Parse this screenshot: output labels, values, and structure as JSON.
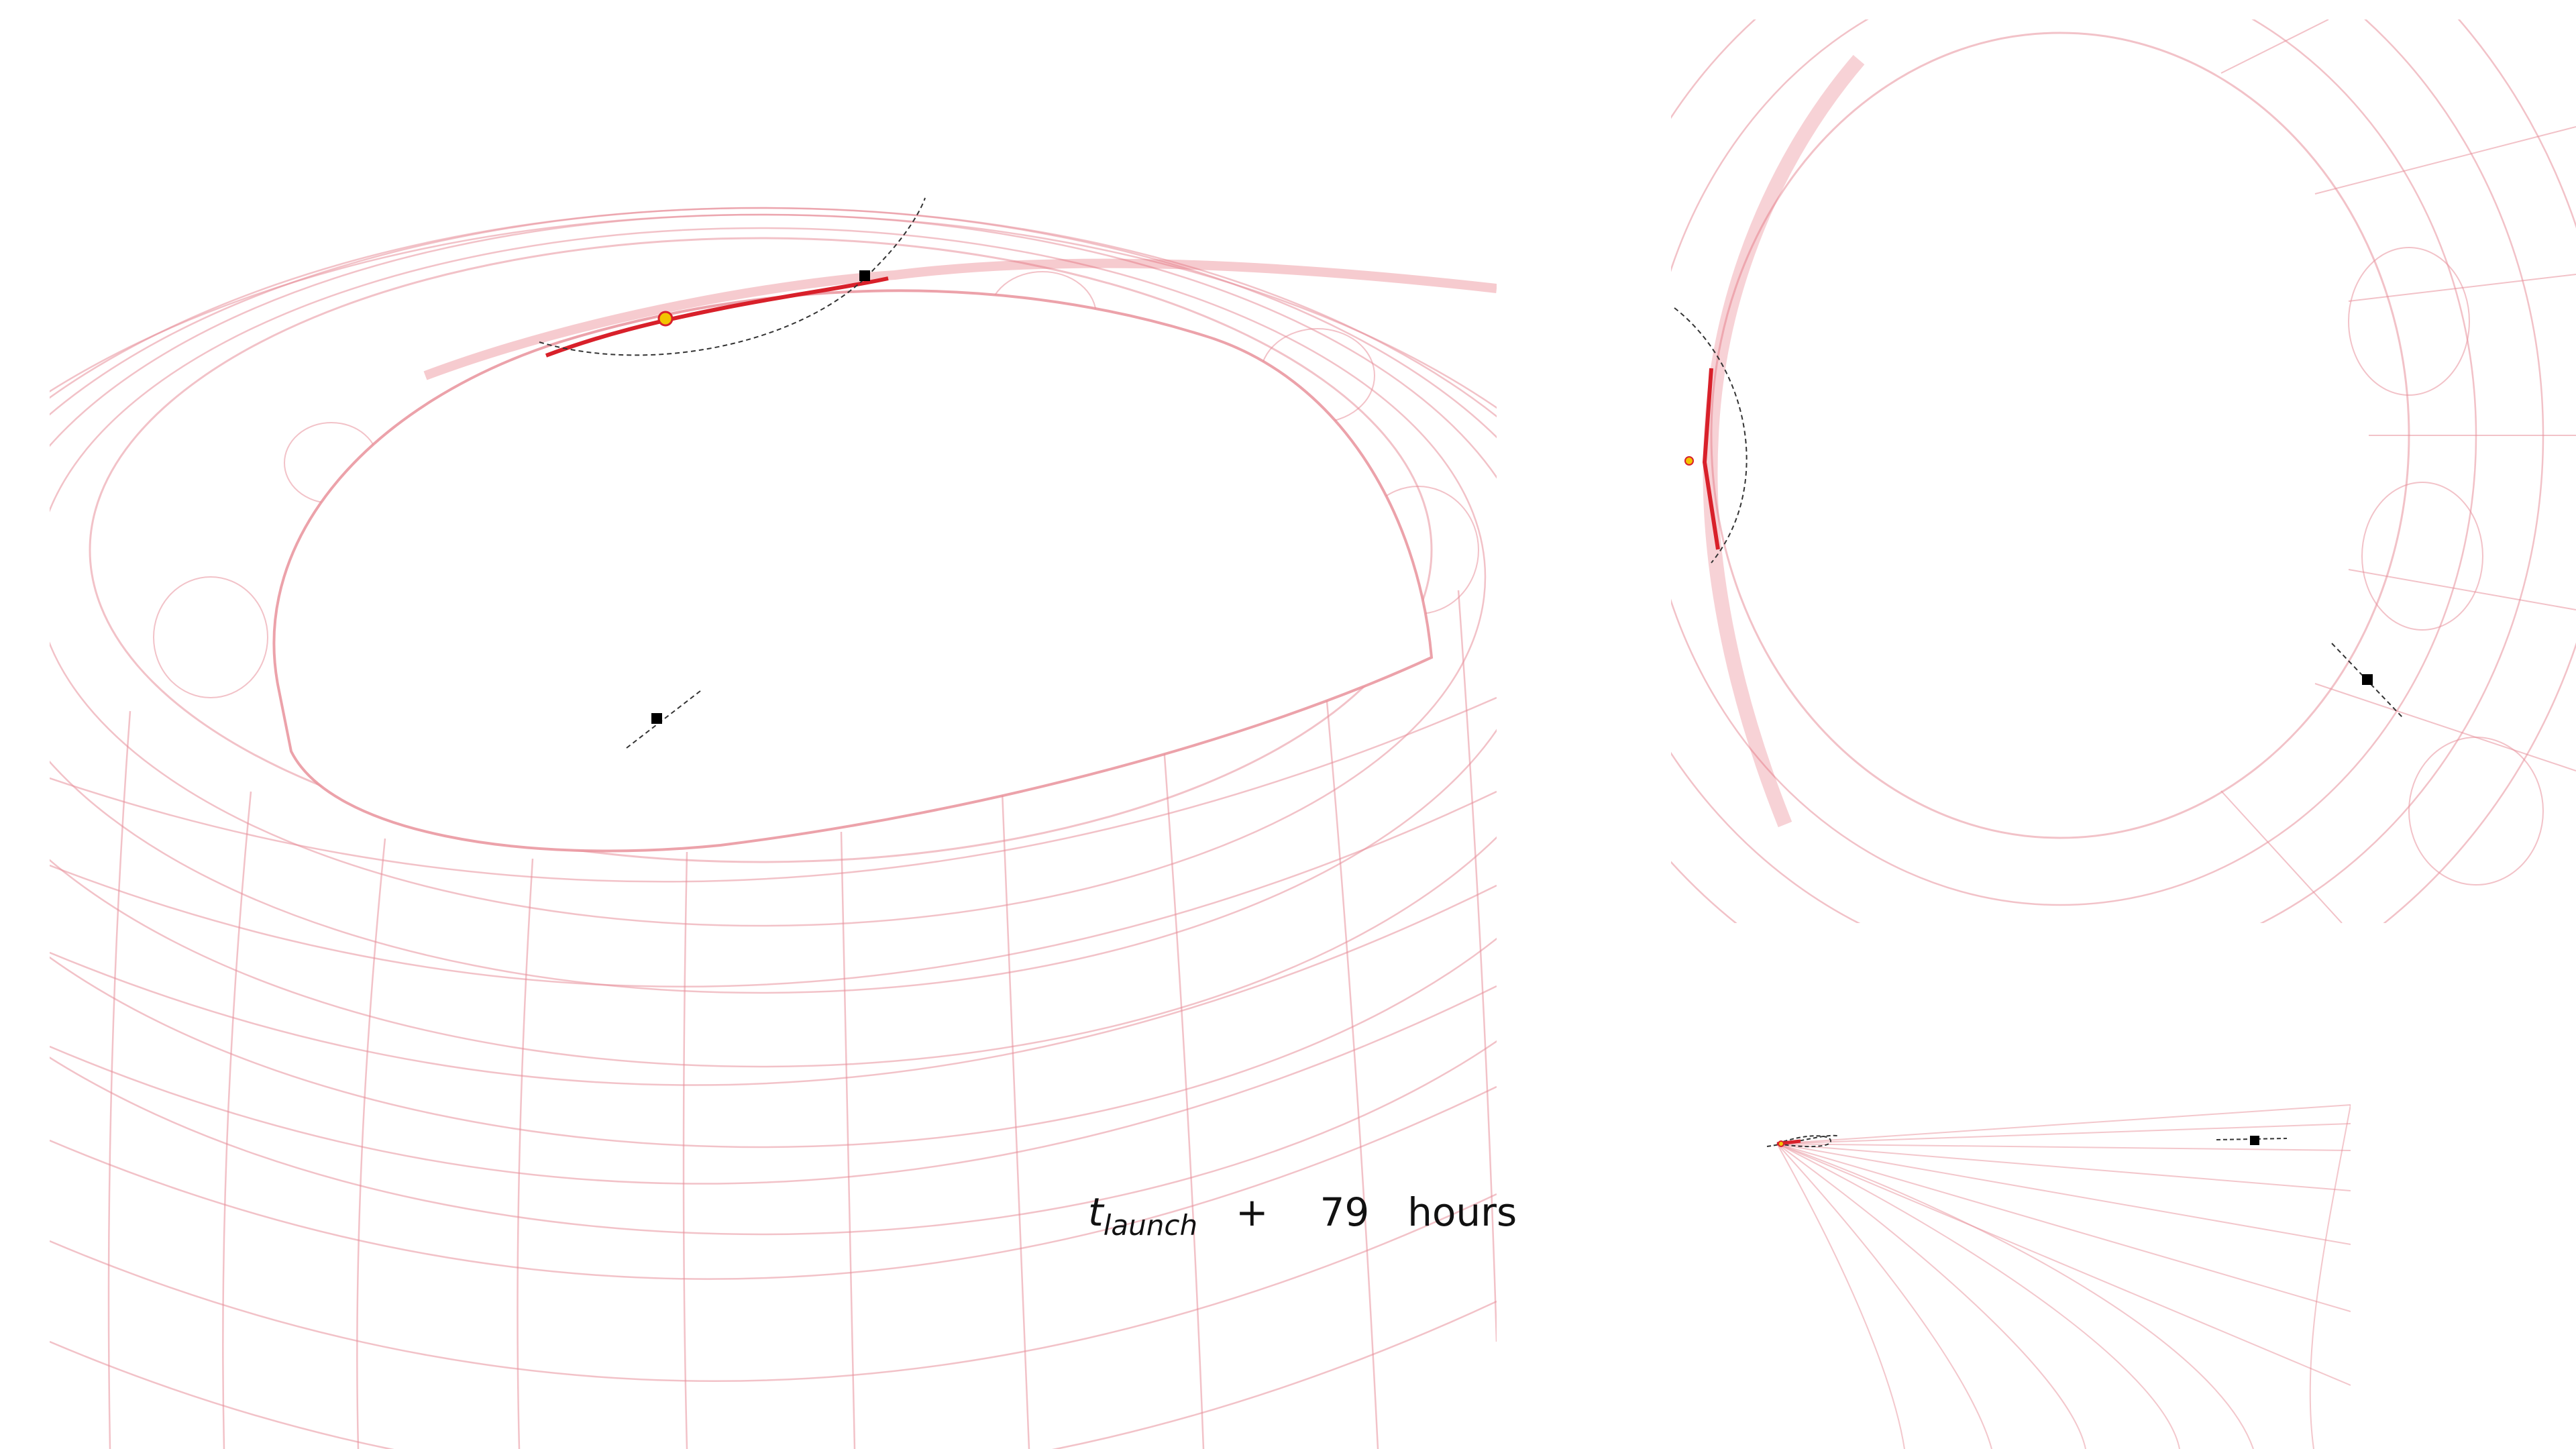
{
  "time_label": {
    "t_symbol": "t",
    "subscript": "launch",
    "plus": "+",
    "hours_value": "79",
    "unit": "hours"
  },
  "colors": {
    "mesh": "#e8909a",
    "trajectory": "#d8202a",
    "marker_current": "#f2c500",
    "marker_node": "#000000",
    "dashed_arc": "#333333"
  },
  "panels": [
    {
      "view": "main-perspective"
    },
    {
      "view": "top-down"
    },
    {
      "view": "side-edge"
    }
  ]
}
